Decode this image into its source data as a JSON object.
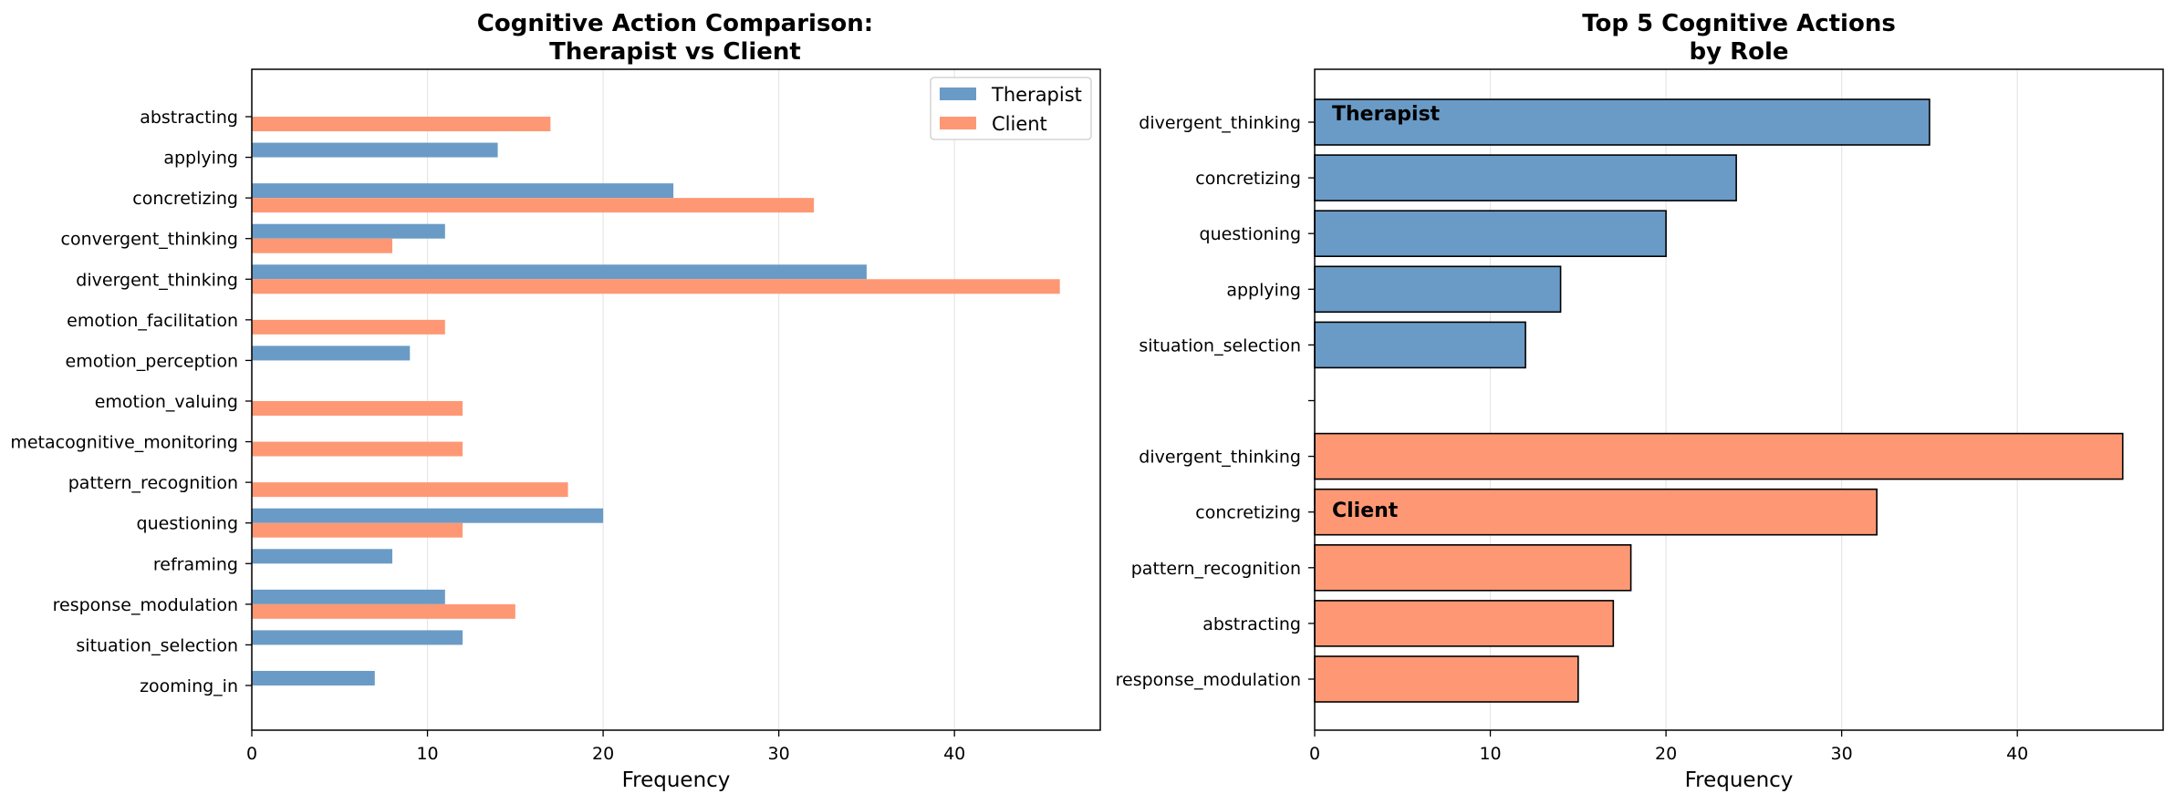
{
  "colors": {
    "therapist": "#6a9bc6",
    "client": "#fe9874",
    "therapist_label": "#4b7fb2",
    "client_label": "#fd8a60",
    "grid": "#e6e6e6",
    "axis": "#000000"
  },
  "chart_data": [
    {
      "type": "bar",
      "orientation": "horizontal",
      "title_lines": [
        "Cognitive Action Comparison:",
        "Therapist vs Client"
      ],
      "xlabel": "Frequency",
      "ylabel": "",
      "xlim": [
        0,
        48.3
      ],
      "xticks": [
        0,
        10,
        20,
        30,
        40
      ],
      "grid": "x",
      "legend_position": "top-right",
      "legend": [
        "Therapist",
        "Client"
      ],
      "categories": [
        "abstracting",
        "applying",
        "concretizing",
        "convergent_thinking",
        "divergent_thinking",
        "emotion_facilitation",
        "emotion_perception",
        "emotion_valuing",
        "metacognitive_monitoring",
        "pattern_recognition",
        "questioning",
        "reframing",
        "response_modulation",
        "situation_selection",
        "zooming_in"
      ],
      "series": [
        {
          "name": "Therapist",
          "values": [
            0,
            14,
            24,
            11,
            35,
            0,
            9,
            0,
            0,
            0,
            20,
            8,
            11,
            12,
            7
          ]
        },
        {
          "name": "Client",
          "values": [
            17,
            0,
            32,
            8,
            46,
            11,
            0,
            12,
            12,
            18,
            12,
            0,
            15,
            0,
            0
          ]
        }
      ]
    },
    {
      "type": "bar",
      "orientation": "horizontal",
      "title_lines": [
        "Top 5 Cognitive Actions",
        "by Role"
      ],
      "xlabel": "Frequency",
      "ylabel": "",
      "xlim": [
        0,
        48.3
      ],
      "xticks": [
        0,
        10,
        20,
        30,
        40
      ],
      "grid": "x",
      "groups": [
        {
          "name": "Therapist",
          "categories": [
            "divergent_thinking",
            "concretizing",
            "questioning",
            "applying",
            "situation_selection"
          ],
          "values": [
            35,
            24,
            20,
            14,
            12
          ]
        },
        {
          "name": "Client",
          "categories": [
            "divergent_thinking",
            "concretizing",
            "pattern_recognition",
            "abstracting",
            "response_modulation"
          ],
          "values": [
            46,
            32,
            18,
            17,
            15
          ]
        }
      ]
    }
  ]
}
